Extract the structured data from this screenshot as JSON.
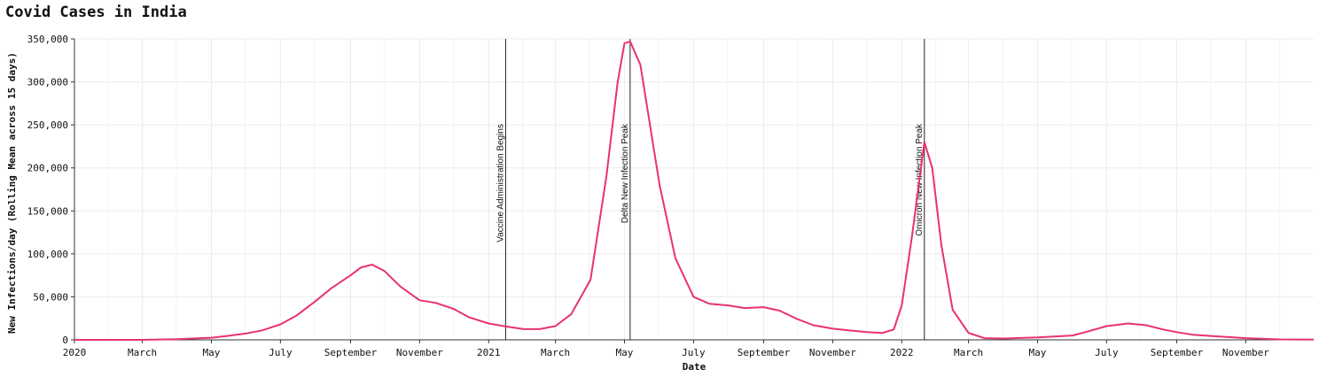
{
  "chart_data": {
    "type": "line",
    "title": "Covid Cases in India",
    "xlabel": "Date",
    "ylabel": "New Infections/day (Rolling Mean across 15 days)",
    "xlim": [
      "2020-01-01",
      "2022-12-31"
    ],
    "ylim": [
      0,
      350000
    ],
    "y_ticks": [
      0,
      50000,
      100000,
      150000,
      200000,
      250000,
      300000,
      350000
    ],
    "x_ticks": [
      {
        "date": "2020-01-01",
        "label": "2020"
      },
      {
        "date": "2020-03-01",
        "label": "March"
      },
      {
        "date": "2020-05-01",
        "label": "May"
      },
      {
        "date": "2020-07-01",
        "label": "July"
      },
      {
        "date": "2020-09-01",
        "label": "September"
      },
      {
        "date": "2020-11-01",
        "label": "November"
      },
      {
        "date": "2021-01-01",
        "label": "2021"
      },
      {
        "date": "2021-03-01",
        "label": "March"
      },
      {
        "date": "2021-05-01",
        "label": "May"
      },
      {
        "date": "2021-07-01",
        "label": "July"
      },
      {
        "date": "2021-09-01",
        "label": "September"
      },
      {
        "date": "2021-11-01",
        "label": "November"
      },
      {
        "date": "2022-01-01",
        "label": "2022"
      },
      {
        "date": "2022-03-01",
        "label": "March"
      },
      {
        "date": "2022-05-01",
        "label": "May"
      },
      {
        "date": "2022-07-01",
        "label": "July"
      },
      {
        "date": "2022-09-01",
        "label": "September"
      },
      {
        "date": "2022-11-01",
        "label": "November"
      }
    ],
    "grid": true,
    "line_color": "#e8336b",
    "annotations": [
      {
        "date": "2021-01-16",
        "label": "Vaccine Administration Begins"
      },
      {
        "date": "2021-05-06",
        "label": "Delta New Infection Peak"
      },
      {
        "date": "2022-01-21",
        "label": "Omicron New Infection Peak"
      }
    ],
    "series": [
      {
        "points": [
          [
            "2020-01-01",
            0
          ],
          [
            "2020-03-01",
            30
          ],
          [
            "2020-04-01",
            800
          ],
          [
            "2020-05-01",
            2500
          ],
          [
            "2020-05-15",
            4500
          ],
          [
            "2020-06-01",
            7500
          ],
          [
            "2020-06-15",
            11000
          ],
          [
            "2020-07-01",
            18000
          ],
          [
            "2020-07-15",
            28000
          ],
          [
            "2020-08-01",
            45000
          ],
          [
            "2020-08-15",
            60000
          ],
          [
            "2020-09-01",
            75000
          ],
          [
            "2020-09-10",
            84000
          ],
          [
            "2020-09-20",
            87500
          ],
          [
            "2020-10-01",
            80000
          ],
          [
            "2020-10-15",
            62000
          ],
          [
            "2020-11-01",
            46000
          ],
          [
            "2020-11-15",
            43000
          ],
          [
            "2020-12-01",
            36000
          ],
          [
            "2020-12-15",
            26000
          ],
          [
            "2021-01-01",
            19000
          ],
          [
            "2021-01-16",
            15500
          ],
          [
            "2021-02-01",
            12500
          ],
          [
            "2021-02-15",
            12500
          ],
          [
            "2021-03-01",
            16000
          ],
          [
            "2021-03-15",
            30000
          ],
          [
            "2021-04-01",
            70000
          ],
          [
            "2021-04-15",
            190000
          ],
          [
            "2021-04-25",
            300000
          ],
          [
            "2021-05-01",
            345000
          ],
          [
            "2021-05-06",
            347000
          ],
          [
            "2021-05-15",
            320000
          ],
          [
            "2021-06-01",
            180000
          ],
          [
            "2021-06-15",
            95000
          ],
          [
            "2021-07-01",
            50000
          ],
          [
            "2021-07-15",
            42000
          ],
          [
            "2021-08-01",
            40000
          ],
          [
            "2021-08-15",
            37000
          ],
          [
            "2021-09-01",
            38000
          ],
          [
            "2021-09-15",
            34000
          ],
          [
            "2021-10-01",
            24000
          ],
          [
            "2021-10-15",
            17000
          ],
          [
            "2021-11-01",
            13000
          ],
          [
            "2021-11-15",
            11000
          ],
          [
            "2021-12-01",
            9000
          ],
          [
            "2021-12-15",
            8000
          ],
          [
            "2021-12-25",
            12000
          ],
          [
            "2022-01-01",
            40000
          ],
          [
            "2022-01-10",
            120000
          ],
          [
            "2022-01-21",
            230000
          ],
          [
            "2022-01-28",
            200000
          ],
          [
            "2022-02-05",
            110000
          ],
          [
            "2022-02-15",
            35000
          ],
          [
            "2022-03-01",
            8000
          ],
          [
            "2022-03-15",
            2000
          ],
          [
            "2022-04-01",
            1500
          ],
          [
            "2022-05-01",
            2800
          ],
          [
            "2022-06-01",
            5000
          ],
          [
            "2022-06-15",
            10000
          ],
          [
            "2022-07-01",
            16000
          ],
          [
            "2022-07-20",
            19000
          ],
          [
            "2022-08-05",
            17000
          ],
          [
            "2022-08-20",
            12000
          ],
          [
            "2022-09-01",
            9000
          ],
          [
            "2022-09-15",
            6000
          ],
          [
            "2022-10-01",
            4500
          ],
          [
            "2022-11-01",
            2000
          ],
          [
            "2022-12-01",
            500
          ],
          [
            "2022-12-31",
            200
          ]
        ]
      }
    ]
  }
}
